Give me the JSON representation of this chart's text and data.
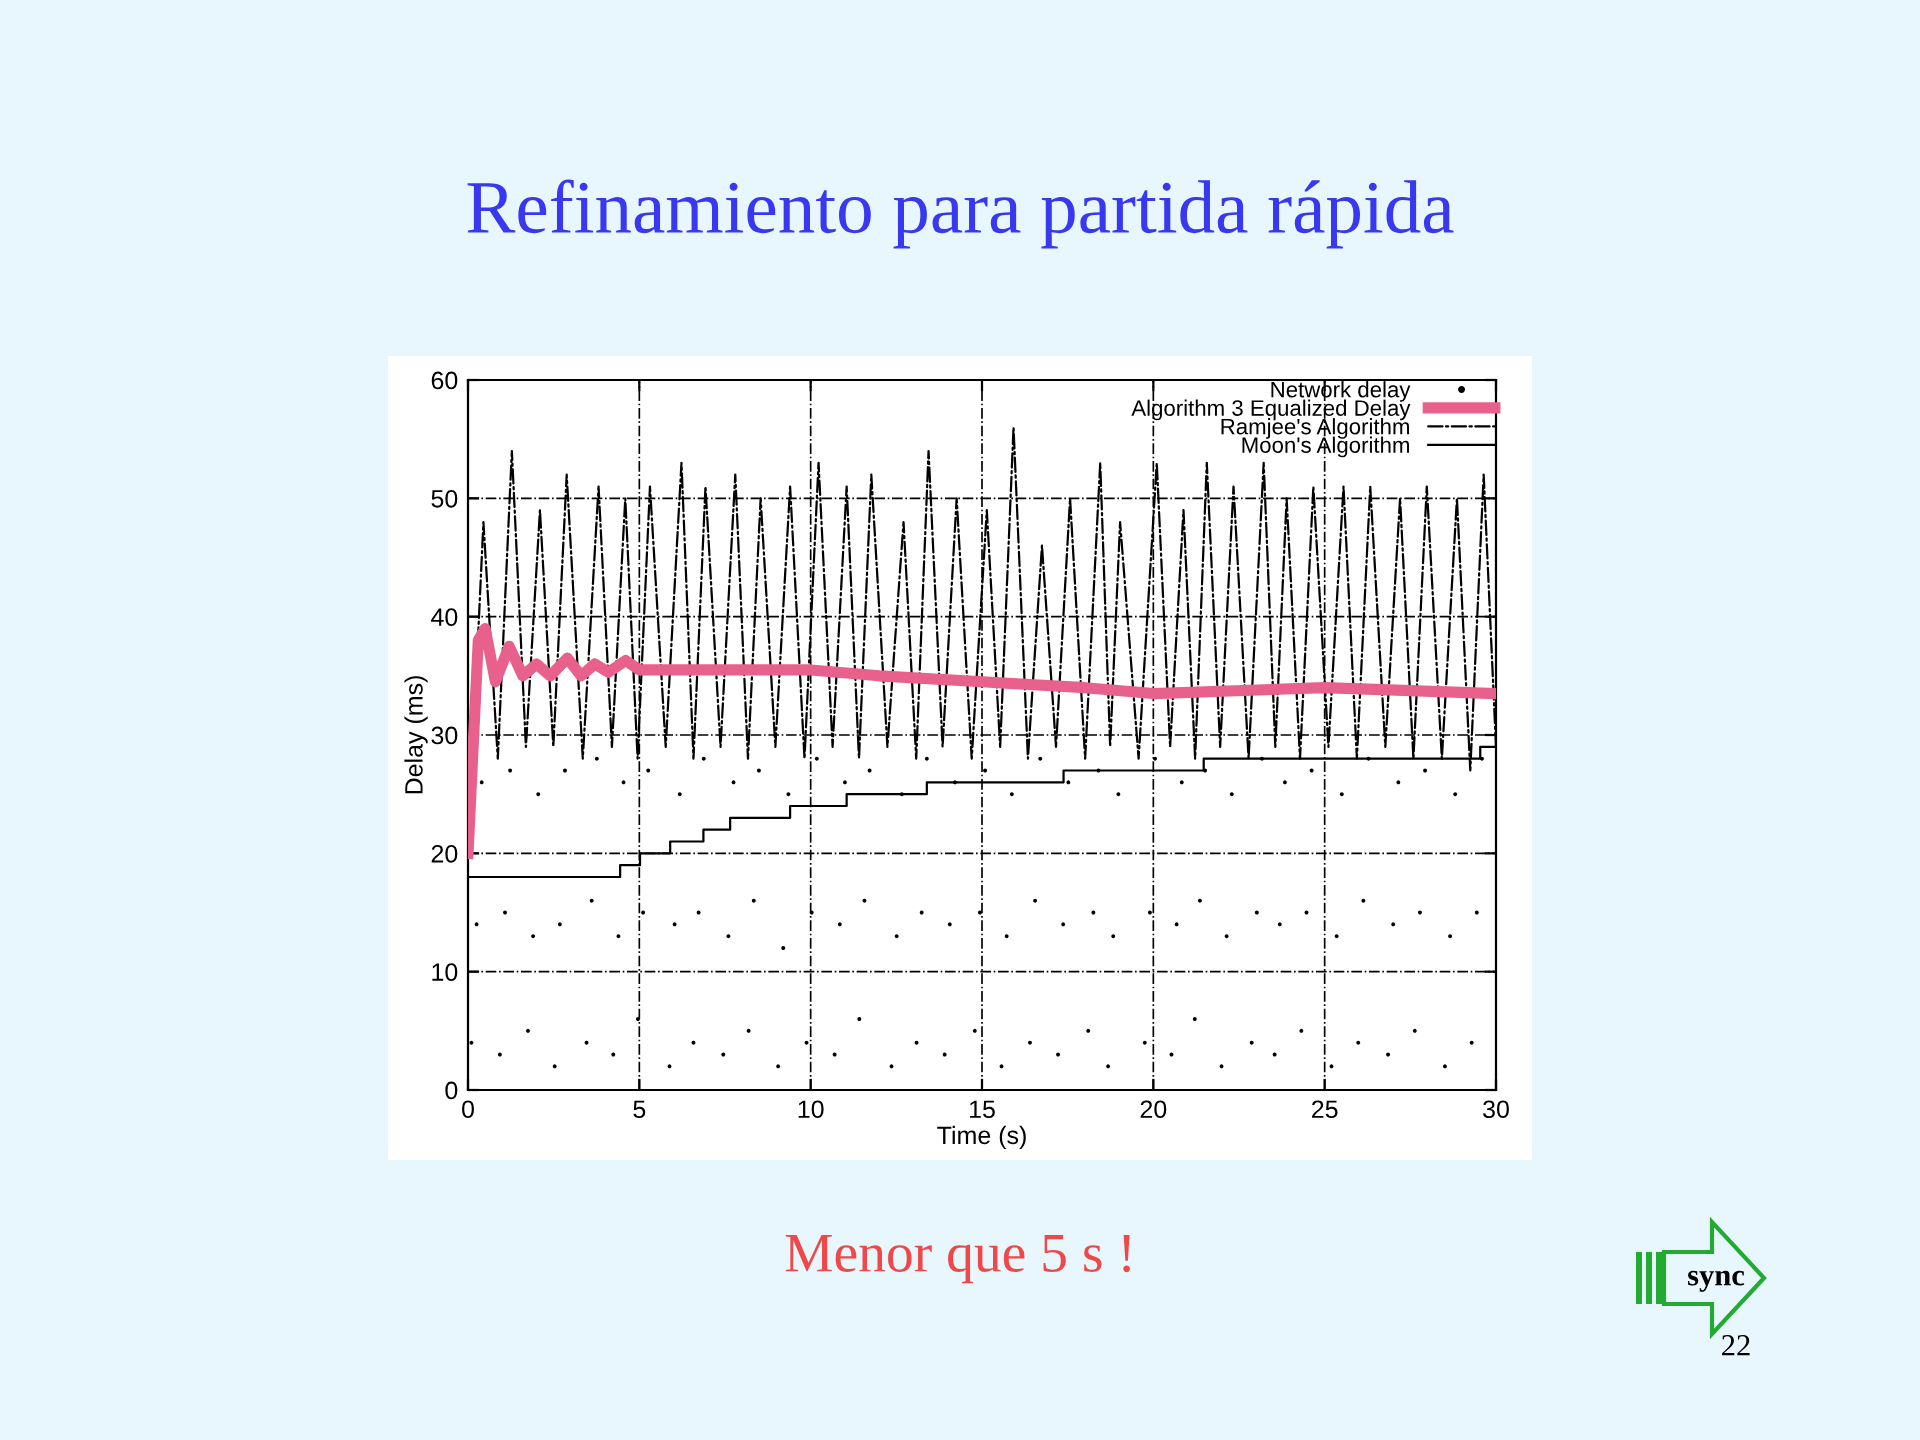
{
  "chart_data": {
    "type": "line",
    "title": "Refinamiento para partida rápida",
    "xlabel": "Time (s)",
    "ylabel": "Delay (ms)",
    "annotations": [
      "Menor que 5 s !",
      "sync",
      "22"
    ],
    "xlim": [
      0,
      30
    ],
    "ylim": [
      0,
      60
    ],
    "xticks": [
      0,
      5,
      10,
      15,
      20,
      25,
      30
    ],
    "yticks": [
      0,
      10,
      20,
      30,
      40,
      50,
      60
    ],
    "grid": true,
    "legend": "top right",
    "series": [
      {
        "name": "Network delay",
        "type": "scatter",
        "marker": "circle",
        "color": "#000000",
        "x": [
          0.1,
          0.25,
          0.4,
          0.93,
          1.08,
          1.23,
          1.75,
          1.9,
          2.05,
          2.53,
          2.68,
          2.83,
          3.46,
          3.61,
          3.76,
          4.24,
          4.39,
          4.54,
          4.96,
          5.11,
          5.26,
          5.88,
          6.03,
          6.18,
          6.58,
          6.73,
          6.88,
          7.45,
          7.6,
          7.75,
          8.19,
          8.34,
          8.49,
          9.05,
          9.2,
          9.35,
          9.88,
          10.03,
          10.18,
          10.7,
          10.85,
          11.0,
          11.42,
          11.57,
          11.72,
          12.36,
          12.51,
          12.66,
          13.09,
          13.24,
          13.39,
          13.91,
          14.06,
          14.21,
          14.79,
          14.94,
          15.09,
          15.57,
          15.72,
          15.87,
          16.4,
          16.55,
          16.7,
          17.22,
          17.37,
          17.52,
          18.1,
          18.25,
          18.4,
          18.68,
          18.83,
          18.98,
          19.75,
          19.9,
          20.05,
          20.53,
          20.68,
          20.83,
          21.21,
          21.36,
          21.51,
          21.99,
          22.14,
          22.29,
          22.87,
          23.02,
          23.17,
          23.54,
          23.69,
          23.84,
          24.32,
          24.47,
          24.62,
          25.2,
          25.35,
          25.5,
          25.98,
          26.13,
          26.28,
          26.85,
          27.0,
          27.15,
          27.63,
          27.78,
          27.93,
          28.51,
          28.66,
          28.81,
          29.29,
          29.44,
          29.59
        ],
        "values": [
          4,
          14,
          26,
          3,
          15,
          27,
          5,
          13,
          25,
          2,
          14,
          27,
          4,
          16,
          28,
          3,
          13,
          26,
          6,
          15,
          27,
          2,
          14,
          25,
          4,
          15,
          28,
          3,
          13,
          26,
          5,
          16,
          27,
          2,
          12,
          25,
          4,
          15,
          28,
          3,
          14,
          26,
          6,
          16,
          27,
          2,
          13,
          25,
          4,
          15,
          28,
          3,
          14,
          26,
          5,
          15,
          27,
          2,
          13,
          25,
          4,
          16,
          28,
          3,
          14,
          26,
          5,
          15,
          27,
          2,
          13,
          25,
          4,
          15,
          28,
          3,
          14,
          26,
          6,
          16,
          27,
          2,
          13,
          25,
          4,
          15,
          28,
          3,
          14,
          26,
          5,
          15,
          27,
          2,
          13,
          25,
          4,
          16,
          28,
          3,
          14,
          26,
          5,
          15,
          27,
          2,
          13,
          25,
          4,
          15,
          28
        ]
      },
      {
        "name": "Algorithm 3 Equalized Delay",
        "type": "line",
        "line_style": "solid",
        "color": "#e8608c",
        "x": [
          0,
          0.3,
          0.5,
          0.8,
          1.2,
          1.6,
          2.0,
          2.4,
          2.9,
          3.3,
          3.7,
          4.1,
          4.6,
          5,
          8,
          10,
          12,
          15,
          18,
          20,
          25,
          30
        ],
        "values": [
          20,
          38,
          39,
          34.5,
          37.5,
          35,
          36,
          35,
          36.5,
          35,
          36,
          35.3,
          36.3,
          35.5,
          35.5,
          35.5,
          35,
          34.5,
          34,
          33.5,
          34,
          33.5
        ]
      },
      {
        "name": "Ramjee's Algorithm",
        "type": "line",
        "line_style": "dashdot",
        "color": "#000000",
        "x": [
          0,
          0.45,
          0.87,
          1.28,
          1.69,
          2.1,
          2.49,
          2.88,
          3.35,
          3.81,
          4.2,
          4.59,
          4.95,
          5.31,
          5.77,
          6.23,
          6.58,
          6.93,
          7.37,
          7.8,
          8.17,
          8.54,
          8.97,
          9.4,
          9.82,
          10.23,
          10.64,
          11.05,
          11.41,
          11.77,
          12.24,
          12.71,
          13.08,
          13.44,
          13.85,
          14.26,
          14.7,
          15.14,
          15.53,
          15.92,
          16.34,
          16.75,
          17.16,
          17.57,
          18.01,
          18.45,
          18.74,
          19.03,
          19.57,
          20.1,
          20.49,
          20.88,
          21.22,
          21.56,
          21.95,
          22.34,
          22.78,
          23.22,
          23.56,
          23.89,
          24.28,
          24.67,
          25.11,
          25.55,
          25.94,
          26.33,
          26.77,
          27.2,
          27.59,
          27.98,
          28.42,
          28.86,
          29.25,
          29.64,
          30
        ],
        "values": [
          20,
          48,
          28,
          54,
          29,
          49,
          29,
          52,
          28,
          51,
          29,
          50,
          28,
          51,
          29,
          53,
          28,
          51,
          29,
          52,
          28,
          50,
          29,
          51,
          28,
          53,
          29,
          51,
          28,
          52,
          29,
          48,
          28,
          54,
          29,
          50,
          28,
          49,
          29,
          56,
          28,
          46,
          29,
          50,
          28,
          53,
          29,
          48,
          28,
          53,
          29,
          49,
          28,
          53,
          29,
          51,
          28,
          53,
          29,
          50,
          28,
          51,
          29,
          51,
          28,
          51,
          29,
          50,
          28,
          51,
          28,
          50,
          27,
          52,
          29
        ]
      },
      {
        "name": "Moon's Algorithm",
        "type": "step",
        "line_style": "solid",
        "color": "#000000",
        "x": [
          0,
          4.44,
          5.02,
          5.9,
          6.87,
          7.65,
          9.4,
          11.05,
          13.39,
          17.38,
          21.47,
          29.54,
          30
        ],
        "values": [
          18,
          19,
          20,
          21,
          22,
          23,
          24,
          25,
          26,
          27,
          28,
          29,
          29
        ]
      }
    ]
  }
}
